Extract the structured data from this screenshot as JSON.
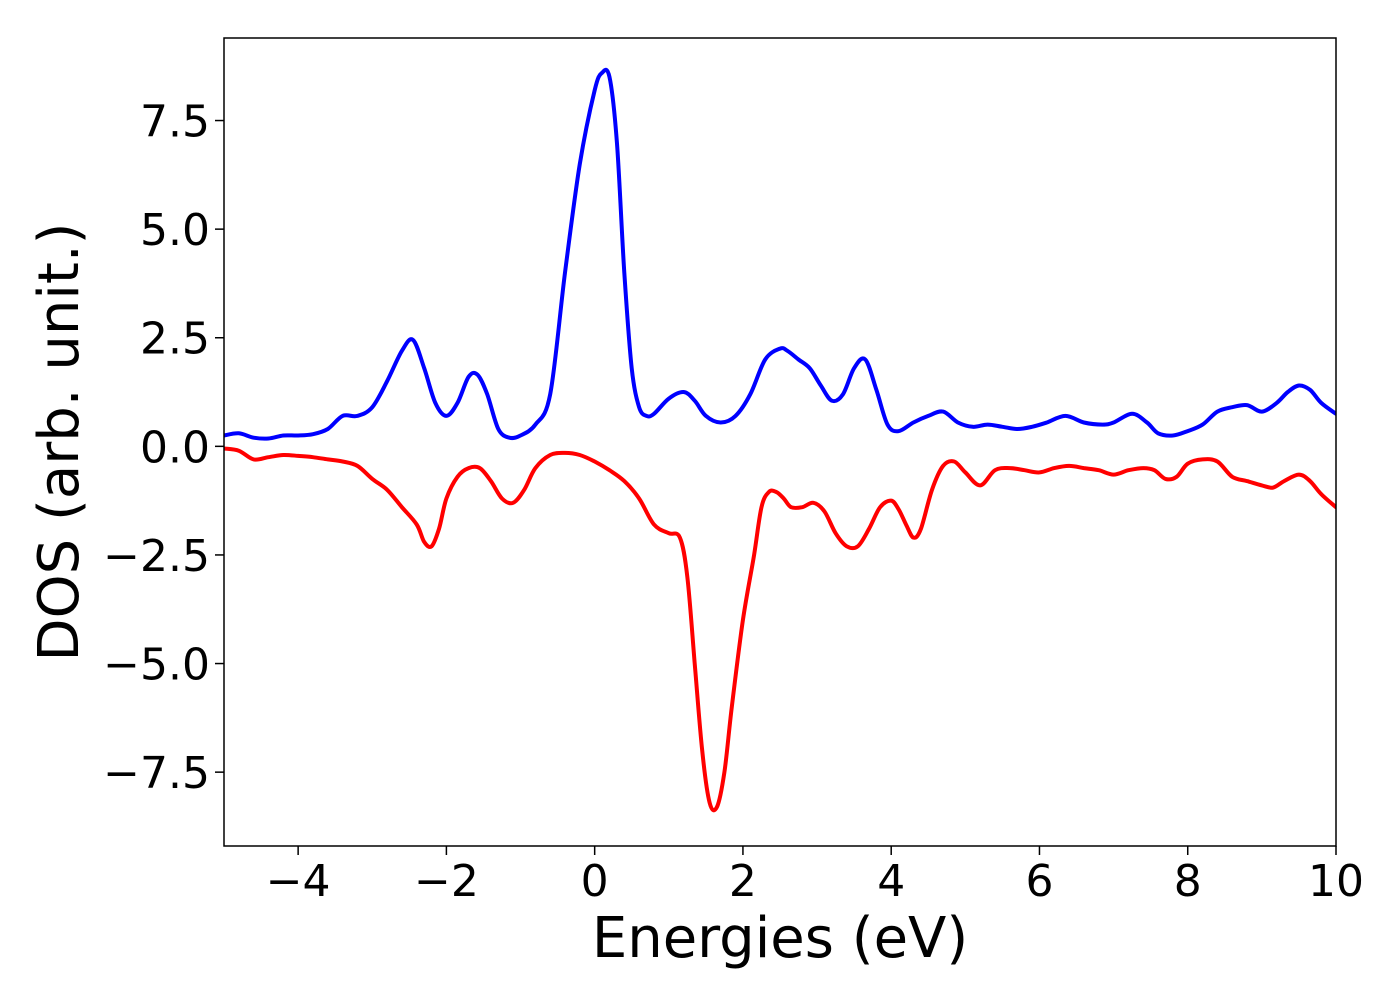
{
  "chart_data": {
    "type": "line",
    "title": "",
    "xlabel": "Energies (eV)",
    "ylabel": "DOS (arb. unit.)",
    "xlim": [
      -5,
      10
    ],
    "ylim": [
      -9.2,
      9.4
    ],
    "grid": false,
    "legend": "none",
    "x_ticks": [
      -4,
      -2,
      0,
      2,
      4,
      6,
      8,
      10
    ],
    "x_tick_labels": [
      "−4",
      "−2",
      "0",
      "2",
      "4",
      "6",
      "8",
      "10"
    ],
    "y_ticks": [
      7.5,
      5.0,
      2.5,
      0.0,
      -2.5,
      -5.0,
      -7.5
    ],
    "y_tick_labels": [
      "7.5",
      "5.0",
      "2.5",
      "0.0",
      "−2.5",
      "−5.0",
      "−7.5"
    ],
    "series": [
      {
        "color": "#0000ff",
        "x": [
          -5.0,
          -4.8,
          -4.6,
          -4.4,
          -4.2,
          -4.0,
          -3.8,
          -3.6,
          -3.4,
          -3.2,
          -3.0,
          -2.8,
          -2.6,
          -2.45,
          -2.3,
          -2.15,
          -2.0,
          -1.85,
          -1.7,
          -1.58,
          -1.45,
          -1.3,
          -1.15,
          -1.0,
          -0.8,
          -0.6,
          -0.4,
          -0.2,
          0.0,
          0.1,
          0.2,
          0.3,
          0.4,
          0.5,
          0.6,
          0.7,
          0.8,
          1.0,
          1.2,
          1.35,
          1.5,
          1.7,
          1.9,
          2.1,
          2.3,
          2.5,
          2.6,
          2.75,
          2.9,
          3.05,
          3.2,
          3.35,
          3.5,
          3.65,
          3.8,
          3.95,
          4.1,
          4.3,
          4.5,
          4.7,
          4.9,
          5.1,
          5.3,
          5.5,
          5.7,
          5.9,
          6.1,
          6.35,
          6.6,
          6.85,
          7.0,
          7.25,
          7.45,
          7.6,
          7.8,
          8.0,
          8.2,
          8.4,
          8.6,
          8.8,
          9.0,
          9.2,
          9.35,
          9.5,
          9.65,
          9.8,
          10.0
        ],
        "y": [
          0.25,
          0.3,
          0.2,
          0.18,
          0.25,
          0.25,
          0.28,
          0.4,
          0.7,
          0.7,
          0.9,
          1.5,
          2.2,
          2.45,
          1.8,
          1.0,
          0.7,
          1.0,
          1.6,
          1.65,
          1.2,
          0.4,
          0.2,
          0.25,
          0.5,
          1.2,
          4.0,
          6.5,
          8.2,
          8.6,
          8.5,
          7.0,
          4.0,
          1.8,
          0.9,
          0.7,
          0.75,
          1.1,
          1.25,
          1.05,
          0.7,
          0.55,
          0.7,
          1.2,
          2.0,
          2.25,
          2.2,
          2.0,
          1.8,
          1.4,
          1.05,
          1.2,
          1.8,
          2.0,
          1.3,
          0.5,
          0.35,
          0.55,
          0.7,
          0.8,
          0.55,
          0.45,
          0.5,
          0.45,
          0.4,
          0.45,
          0.55,
          0.7,
          0.55,
          0.5,
          0.55,
          0.75,
          0.55,
          0.3,
          0.25,
          0.35,
          0.5,
          0.8,
          0.9,
          0.95,
          0.8,
          1.0,
          1.25,
          1.4,
          1.3,
          1.0,
          0.75
        ]
      },
      {
        "color": "#ff0000",
        "x": [
          -5.0,
          -4.8,
          -4.6,
          -4.4,
          -4.2,
          -4.0,
          -3.8,
          -3.6,
          -3.4,
          -3.2,
          -3.0,
          -2.8,
          -2.6,
          -2.4,
          -2.3,
          -2.2,
          -2.1,
          -2.0,
          -1.85,
          -1.7,
          -1.55,
          -1.4,
          -1.25,
          -1.1,
          -0.95,
          -0.8,
          -0.6,
          -0.4,
          -0.2,
          0.0,
          0.2,
          0.4,
          0.6,
          0.8,
          1.0,
          1.15,
          1.25,
          1.35,
          1.45,
          1.55,
          1.65,
          1.75,
          1.85,
          2.0,
          2.15,
          2.25,
          2.35,
          2.45,
          2.55,
          2.65,
          2.8,
          2.95,
          3.1,
          3.25,
          3.4,
          3.55,
          3.7,
          3.85,
          4.0,
          4.1,
          4.2,
          4.3,
          4.4,
          4.55,
          4.7,
          4.85,
          5.0,
          5.2,
          5.4,
          5.6,
          5.8,
          6.0,
          6.2,
          6.4,
          6.6,
          6.8,
          7.0,
          7.2,
          7.4,
          7.55,
          7.7,
          7.85,
          8.0,
          8.2,
          8.4,
          8.6,
          8.8,
          9.0,
          9.15,
          9.3,
          9.5,
          9.65,
          9.8,
          10.0
        ],
        "y": [
          -0.05,
          -0.1,
          -0.3,
          -0.25,
          -0.2,
          -0.22,
          -0.25,
          -0.3,
          -0.35,
          -0.45,
          -0.75,
          -1.0,
          -1.4,
          -1.8,
          -2.2,
          -2.3,
          -1.9,
          -1.2,
          -0.7,
          -0.5,
          -0.5,
          -0.8,
          -1.2,
          -1.3,
          -1.0,
          -0.5,
          -0.2,
          -0.15,
          -0.2,
          -0.35,
          -0.55,
          -0.8,
          -1.2,
          -1.8,
          -2.0,
          -2.1,
          -3.0,
          -5.0,
          -7.0,
          -8.2,
          -8.3,
          -7.5,
          -6.0,
          -4.0,
          -2.5,
          -1.4,
          -1.05,
          -1.05,
          -1.2,
          -1.4,
          -1.4,
          -1.3,
          -1.5,
          -2.0,
          -2.3,
          -2.3,
          -1.9,
          -1.4,
          -1.25,
          -1.45,
          -1.8,
          -2.1,
          -1.9,
          -1.0,
          -0.45,
          -0.35,
          -0.6,
          -0.9,
          -0.55,
          -0.5,
          -0.55,
          -0.6,
          -0.5,
          -0.45,
          -0.5,
          -0.55,
          -0.65,
          -0.55,
          -0.5,
          -0.55,
          -0.75,
          -0.7,
          -0.4,
          -0.3,
          -0.35,
          -0.7,
          -0.8,
          -0.9,
          -0.95,
          -0.8,
          -0.65,
          -0.8,
          -1.1,
          -1.4
        ]
      }
    ]
  }
}
